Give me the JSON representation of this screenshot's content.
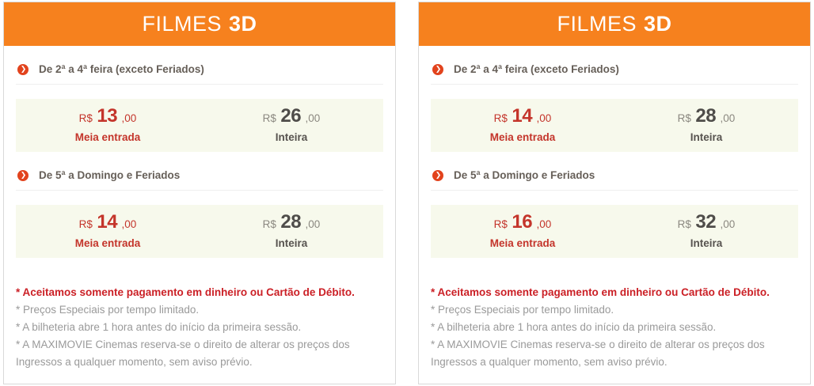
{
  "colors": {
    "header_orange": "#f6811e",
    "arrow_badge_red": "#e2431d",
    "price_red": "#c4352b",
    "note_red": "#cb2026",
    "band_green": "#f7f9ec",
    "text_gray": "#9a9a9a",
    "title_gray": "#665f58",
    "border_gray": "#d9d9d9"
  },
  "icons": {
    "arrow": "❯"
  },
  "panels": [
    {
      "title_regular": "FILMES",
      "title_bold": "3D",
      "sections": [
        {
          "label": "De 2ª a 4ª feira (exceto Feriados)",
          "prices": [
            {
              "currency": "R$",
              "amount": "13",
              "cents": ",00",
              "label": "Meia entrada"
            },
            {
              "currency": "R$",
              "amount": "26",
              "cents": ",00",
              "label": "Inteira"
            }
          ]
        },
        {
          "label": "De 5ª a Domingo e Feriados",
          "prices": [
            {
              "currency": "R$",
              "amount": "14",
              "cents": ",00",
              "label": "Meia entrada"
            },
            {
              "currency": "R$",
              "amount": "28",
              "cents": ",00",
              "label": "Inteira"
            }
          ]
        }
      ],
      "notes": [
        "* Aceitamos somente pagamento em dinheiro ou Cartão de Débito.",
        "* Preços Especiais por tempo limitado.",
        "* A bilheteria abre 1 hora antes do início da primeira sessão.",
        "* A MAXIMOVIE Cinemas reserva-se o direito de alterar os preços dos Ingressos a qualquer momento, sem aviso prévio."
      ]
    },
    {
      "title_regular": "FILMES",
      "title_bold": "3D",
      "sections": [
        {
          "label": "De 2ª a 4ª feira (exceto Feriados)",
          "prices": [
            {
              "currency": "R$",
              "amount": "14",
              "cents": ",00",
              "label": "Meia entrada"
            },
            {
              "currency": "R$",
              "amount": "28",
              "cents": ",00",
              "label": "Inteira"
            }
          ]
        },
        {
          "label": "De 5ª a Domingo e Feriados",
          "prices": [
            {
              "currency": "R$",
              "amount": "16",
              "cents": ",00",
              "label": "Meia entrada"
            },
            {
              "currency": "R$",
              "amount": "32",
              "cents": ",00",
              "label": "Inteira"
            }
          ]
        }
      ],
      "notes": [
        "* Aceitamos somente pagamento em dinheiro ou Cartão de Débito.",
        "* Preços Especiais por tempo limitado.",
        "* A bilheteria abre 1 hora antes do início da primeira sessão.",
        "* A MAXIMOVIE Cinemas reserva-se o direito de alterar os preços dos Ingressos a qualquer momento, sem aviso prévio."
      ]
    }
  ]
}
